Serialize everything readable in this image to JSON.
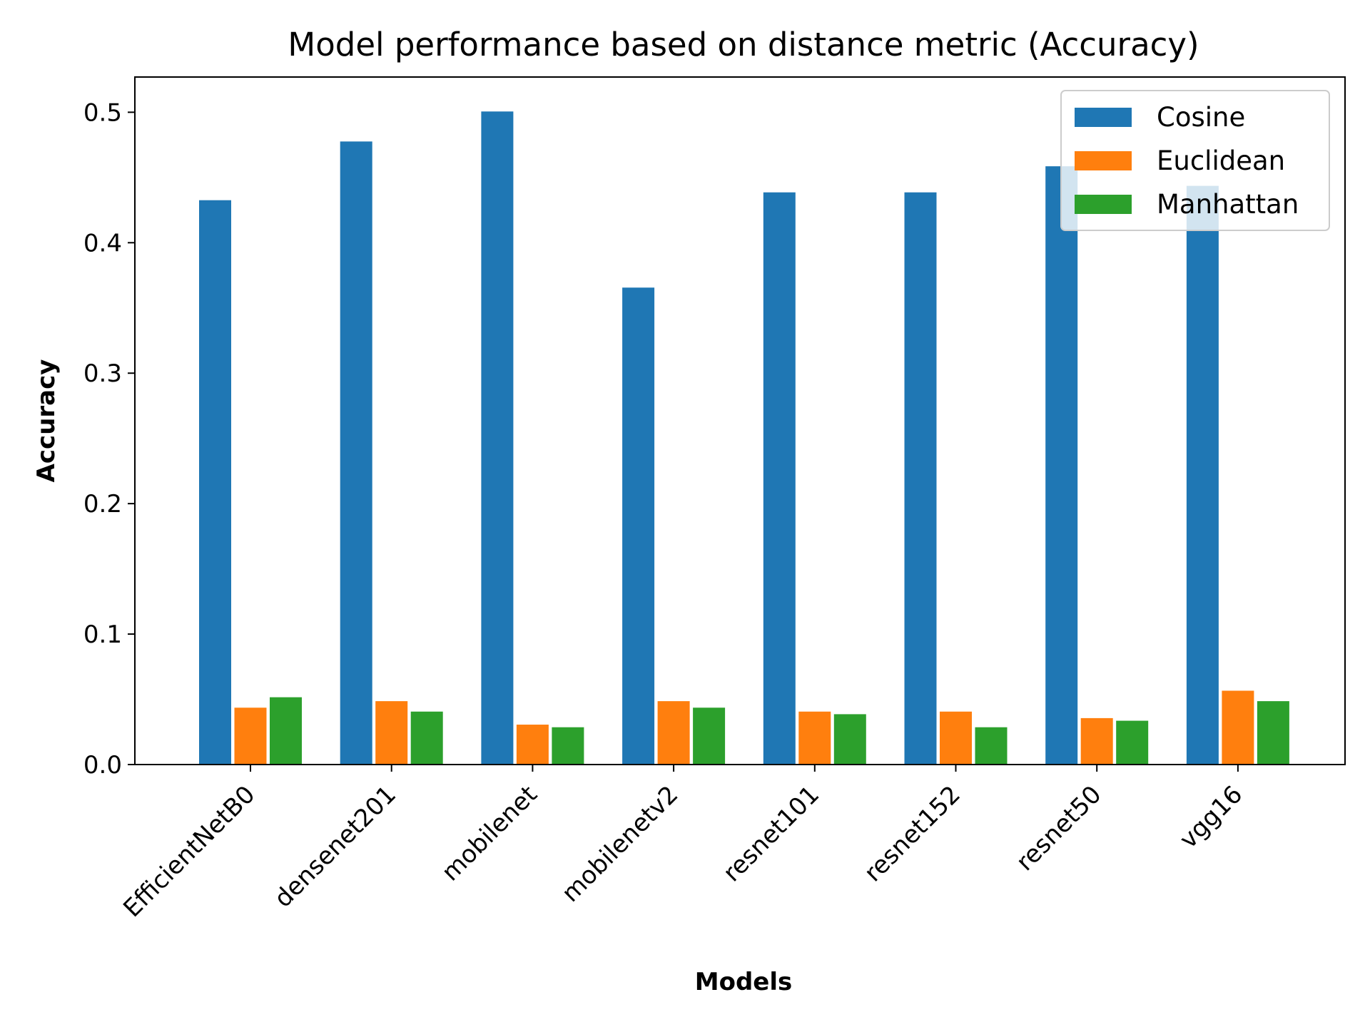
{
  "chart_data": {
    "type": "bar",
    "title": "Model performance based on distance metric (Accuracy)",
    "xlabel": "Models",
    "ylabel": "Accuracy",
    "categories": [
      "EfficientNetB0",
      "densenet201",
      "mobilenet",
      "mobilenetv2",
      "resnet101",
      "resnet152",
      "resnet50",
      "vgg16"
    ],
    "series": [
      {
        "name": "Cosine",
        "color": "#1f77b4",
        "values": [
          0.433,
          0.478,
          0.501,
          0.366,
          0.439,
          0.439,
          0.459,
          0.444
        ]
      },
      {
        "name": "Euclidean",
        "color": "#ff7f0e",
        "values": [
          0.044,
          0.049,
          0.031,
          0.049,
          0.041,
          0.041,
          0.036,
          0.057
        ]
      },
      {
        "name": "Manhattan",
        "color": "#2ca02c",
        "values": [
          0.052,
          0.041,
          0.029,
          0.044,
          0.039,
          0.029,
          0.034,
          0.049
        ]
      }
    ],
    "yticks": [
      "0.0",
      "0.1",
      "0.2",
      "0.3",
      "0.4",
      "0.5"
    ],
    "ylim": [
      0,
      0.527
    ],
    "grid": false,
    "legend_position": "top-right"
  }
}
